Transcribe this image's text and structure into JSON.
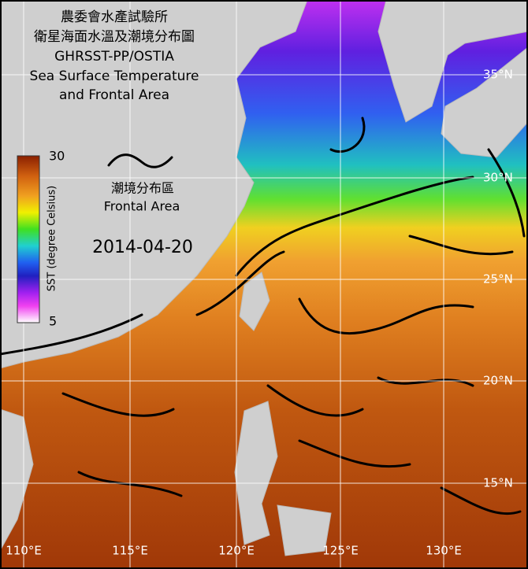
{
  "title": [
    "農委會水產試驗所",
    "衛星海面水溫及潮境分布圖",
    "GHRSST-PP/OSTIA",
    "Sea Surface Temperature",
    "and Frontal Area"
  ],
  "colorbar": {
    "label": "SST (degree Celsius)",
    "max": 30,
    "min": 5
  },
  "legend": {
    "label_zh": "潮境分布區",
    "label_en": "Frontal Area"
  },
  "date": "2014-04-20",
  "latitudes": [
    "35°N",
    "30°N",
    "25°N",
    "20°N",
    "15°N"
  ],
  "longitudes": [
    "110°E",
    "115°E",
    "120°E",
    "125°E",
    "130°E"
  ]
}
